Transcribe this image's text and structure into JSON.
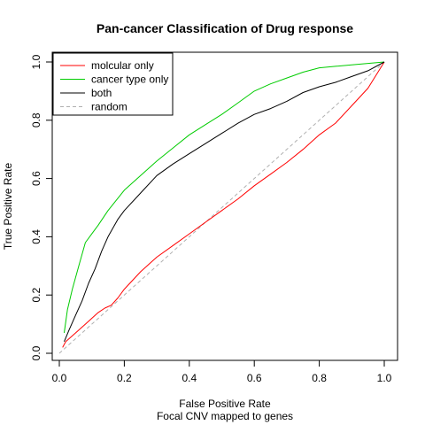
{
  "chart_data": {
    "type": "line",
    "title": "Pan-cancer Classification of Drug response",
    "xlabel": "False Positive Rate",
    "subtitle": "Focal CNV mapped to genes",
    "ylabel": "True Positive Rate",
    "xlim": [
      0,
      1
    ],
    "ylim": [
      0,
      1
    ],
    "xticks": [
      0.0,
      0.2,
      0.4,
      0.6,
      0.8,
      1.0
    ],
    "xtick_labels": [
      "0.0",
      "0.2",
      "0.4",
      "0.6",
      "0.8",
      "1.0"
    ],
    "yticks": [
      0.0,
      0.2,
      0.4,
      0.6,
      0.8,
      1.0
    ],
    "ytick_labels": [
      "0.0",
      "0.2",
      "0.4",
      "0.6",
      "0.8",
      "1.0"
    ],
    "grid": false,
    "legend_position": "top-left",
    "series": [
      {
        "name": "molcular only",
        "color": "#ff0000",
        "dash": "solid",
        "x": [
          0.01,
          0.02,
          0.04,
          0.06,
          0.08,
          0.1,
          0.12,
          0.14,
          0.16,
          0.18,
          0.2,
          0.25,
          0.3,
          0.35,
          0.4,
          0.45,
          0.5,
          0.55,
          0.6,
          0.65,
          0.7,
          0.75,
          0.8,
          0.85,
          0.9,
          0.95,
          1.0
        ],
        "y": [
          0.02,
          0.04,
          0.06,
          0.08,
          0.1,
          0.12,
          0.14,
          0.155,
          0.165,
          0.19,
          0.22,
          0.28,
          0.33,
          0.37,
          0.41,
          0.45,
          0.49,
          0.53,
          0.575,
          0.615,
          0.655,
          0.7,
          0.75,
          0.79,
          0.85,
          0.91,
          1.0
        ]
      },
      {
        "name": "cancer type only",
        "color": "#00cc00",
        "dash": "solid",
        "x": [
          0.015,
          0.025,
          0.04,
          0.06,
          0.08,
          0.1,
          0.12,
          0.15,
          0.2,
          0.25,
          0.3,
          0.35,
          0.4,
          0.45,
          0.5,
          0.55,
          0.6,
          0.65,
          0.7,
          0.75,
          0.8,
          0.85,
          0.9,
          0.95,
          1.0
        ],
        "y": [
          0.07,
          0.15,
          0.22,
          0.3,
          0.38,
          0.41,
          0.44,
          0.49,
          0.56,
          0.61,
          0.66,
          0.705,
          0.75,
          0.785,
          0.82,
          0.86,
          0.9,
          0.925,
          0.945,
          0.965,
          0.98,
          0.985,
          0.99,
          0.995,
          1.0
        ]
      },
      {
        "name": "both",
        "color": "#000000",
        "dash": "solid",
        "x": [
          0.015,
          0.03,
          0.05,
          0.07,
          0.09,
          0.11,
          0.13,
          0.15,
          0.18,
          0.2,
          0.25,
          0.3,
          0.35,
          0.4,
          0.45,
          0.5,
          0.55,
          0.6,
          0.65,
          0.7,
          0.75,
          0.8,
          0.85,
          0.9,
          0.95,
          1.0
        ],
        "y": [
          0.04,
          0.08,
          0.13,
          0.18,
          0.24,
          0.29,
          0.35,
          0.4,
          0.46,
          0.49,
          0.55,
          0.61,
          0.65,
          0.685,
          0.72,
          0.755,
          0.79,
          0.82,
          0.84,
          0.865,
          0.895,
          0.915,
          0.93,
          0.95,
          0.97,
          1.0
        ]
      },
      {
        "name": "random",
        "color": "#b0b0b0",
        "dash": "dashed",
        "x": [
          0.0,
          1.0
        ],
        "y": [
          0.0,
          1.0
        ]
      }
    ]
  }
}
